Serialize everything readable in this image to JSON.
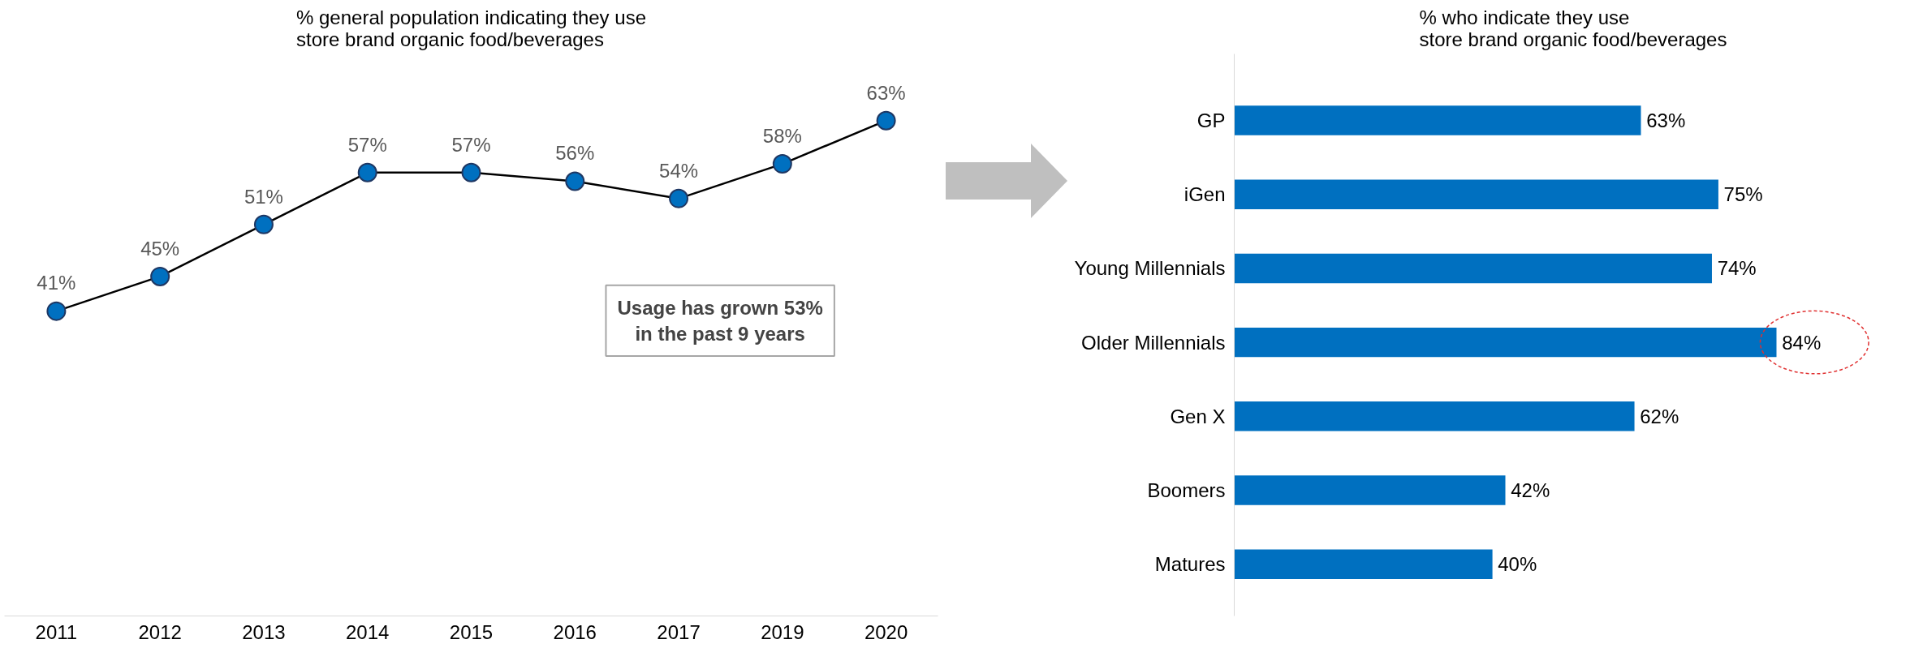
{
  "chart_data": [
    {
      "type": "line",
      "title": "% general population indicating they use\nstore brand organic food/beverages",
      "categories": [
        "2011",
        "2012",
        "2013",
        "2014",
        "2015",
        "2016",
        "2017",
        "2019",
        "2020"
      ],
      "series": [
        {
          "color": "#000000",
          "values": [
            41,
            45,
            51,
            57,
            57,
            56,
            54,
            58,
            63
          ],
          "value_labels": [
            "41%",
            "45%",
            "51%",
            "57%",
            "57%",
            "56%",
            "54%",
            "58%",
            "63%"
          ]
        }
      ],
      "marker": "circle",
      "line_style": "solid",
      "grid": false,
      "tick_labels": "x",
      "annotations": [
        "Usage has grown 53%\nin the past 9 years"
      ]
    },
    {
      "type": "bar",
      "orientation": "horizontal",
      "title": "% who indicate they use\nstore brand organic food/beverages",
      "categories": [
        "GP",
        "iGen",
        "Young Millennials",
        "Older Millennials",
        "Gen X",
        "Boomers",
        "Matures"
      ],
      "series": [
        {
          "color": "#0070c0",
          "values": [
            63,
            75,
            74,
            84,
            62,
            42,
            40
          ],
          "value_labels": [
            "63%",
            "75%",
            "74%",
            "84%",
            "62%",
            "42%",
            "40%"
          ]
        }
      ],
      "grid": false,
      "tick_labels": "y"
    }
  ]
}
